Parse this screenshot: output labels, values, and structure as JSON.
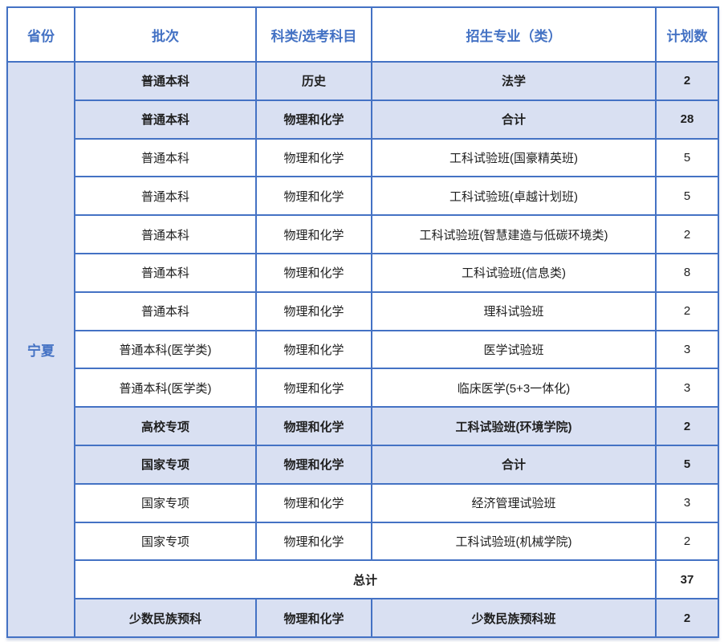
{
  "table": {
    "title": "admissions-plan-table",
    "province": "宁夏",
    "headers": [
      {
        "key": "province",
        "label": "省份"
      },
      {
        "key": "batch",
        "label": "批次"
      },
      {
        "key": "subject",
        "label": "科类/选考科目"
      },
      {
        "key": "major",
        "label": "招生专业（类）"
      },
      {
        "key": "count",
        "label": "计划数"
      }
    ],
    "rows": [
      {
        "batch": "普通本科",
        "subject": "历史",
        "major": "法学",
        "count": "2",
        "highlight": true,
        "total": false
      },
      {
        "batch": "普通本科",
        "subject": "物理和化学",
        "major": "合计",
        "count": "28",
        "highlight": true,
        "total": false
      },
      {
        "batch": "普通本科",
        "subject": "物理和化学",
        "major": "工科试验班(国豪精英班)",
        "count": "5",
        "highlight": false,
        "total": false
      },
      {
        "batch": "普通本科",
        "subject": "物理和化学",
        "major": "工科试验班(卓越计划班)",
        "count": "5",
        "highlight": false,
        "total": false
      },
      {
        "batch": "普通本科",
        "subject": "物理和化学",
        "major": "工科试验班(智慧建造与低碳环境类)",
        "count": "2",
        "highlight": false,
        "total": false
      },
      {
        "batch": "普通本科",
        "subject": "物理和化学",
        "major": "工科试验班(信息类)",
        "count": "8",
        "highlight": false,
        "total": false
      },
      {
        "batch": "普通本科",
        "subject": "物理和化学",
        "major": "理科试验班",
        "count": "2",
        "highlight": false,
        "total": false
      },
      {
        "batch": "普通本科(医学类)",
        "subject": "物理和化学",
        "major": "医学试验班",
        "count": "3",
        "highlight": false,
        "total": false
      },
      {
        "batch": "普通本科(医学类)",
        "subject": "物理和化学",
        "major": "临床医学(5+3一体化)",
        "count": "3",
        "highlight": false,
        "total": false
      },
      {
        "batch": "高校专项",
        "subject": "物理和化学",
        "major": "工科试验班(环境学院)",
        "count": "2",
        "highlight": true,
        "total": false
      },
      {
        "batch": "国家专项",
        "subject": "物理和化学",
        "major": "合计",
        "count": "5",
        "highlight": true,
        "total": false
      },
      {
        "batch": "国家专项",
        "subject": "物理和化学",
        "major": "经济管理试验班",
        "count": "3",
        "highlight": false,
        "total": false
      },
      {
        "batch": "国家专项",
        "subject": "物理和化学",
        "major": "工科试验班(机械学院)",
        "count": "2",
        "highlight": false,
        "total": false
      },
      {
        "batch": "总计",
        "subject": "",
        "major": "",
        "count": "37",
        "highlight": false,
        "total": true
      },
      {
        "batch": "少数民族预科",
        "subject": "物理和化学",
        "major": "少数民族预科班",
        "count": "2",
        "highlight": true,
        "total": false
      }
    ],
    "colors": {
      "border": "#4472C4",
      "header_text": "#4472C4",
      "province_text": "#4472C4",
      "highlight_bg": "#D9E0F2",
      "body_text": "#1F1F1F",
      "background": "#FFFFFF"
    }
  }
}
